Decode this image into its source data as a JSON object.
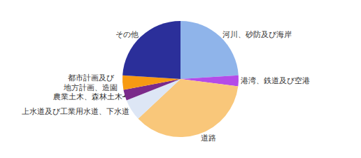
{
  "chart_data": {
    "type": "pie",
    "categories": [
      "河川、砂防及び海岸",
      "港湾、鉄道及び空港",
      "道路",
      "上水道及び工業用水道、下水道",
      "農業土木、森林土木",
      "都市計画及び\n地方計画、造園",
      "その他"
    ],
    "values": [
      24,
      3,
      36,
      6,
      3,
      4,
      24
    ],
    "colors": [
      "#8fb4ea",
      "#b44be8",
      "#f9c77a",
      "#dde6f5",
      "#7a2a8a",
      "#f79a13",
      "#2b2f9a"
    ]
  }
}
